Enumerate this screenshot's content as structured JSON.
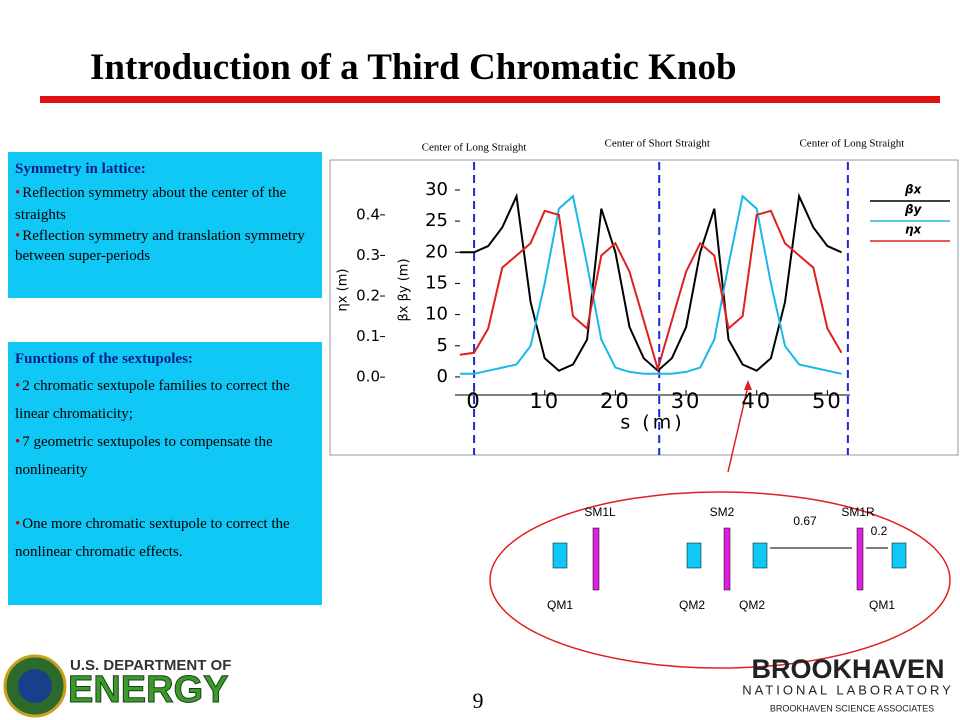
{
  "header": {
    "title": "Introduction of a Third Chromatic Knob"
  },
  "symmetry_box": {
    "heading": "Symmetry in lattice:",
    "items": [
      "Reflection symmetry about the center of the straights",
      "Reflection symmetry and translation symmetry between super-periods"
    ]
  },
  "functions_box": {
    "heading": "Functions of the sextupoles:",
    "items": [
      "2 chromatic sextupole families to correct the linear chromaticity;",
      "7 geometric sextupoles to compensate the nonlinearity",
      "One more chromatic sextupole to correct the nonlinear chromatic effects."
    ]
  },
  "chart_data": {
    "type": "line",
    "x_label": "s (m)",
    "y_label": "βx βy (m)",
    "y2_label": "ηx (m)",
    "xlim": [
      -2.7,
      53.2
    ],
    "ylim": [
      -2.9,
      31.6
    ],
    "y2lim": [
      -0.044,
      0.486
    ],
    "xticks": [
      0,
      10,
      20,
      30,
      40,
      50
    ],
    "yticks": [
      0,
      5,
      10,
      15,
      20,
      25,
      30
    ],
    "y2ticks": [
      {
        "value": 0,
        "label": "0.0"
      },
      0.1,
      0.2,
      0.3,
      0.4
    ],
    "markers": [
      {
        "x": 0,
        "label": "Center of Long Straight"
      },
      {
        "x": 26.2,
        "label": "Center of Short Straight"
      },
      {
        "x": 52.9,
        "label": "Center of Long Straight"
      }
    ],
    "x": [
      -2,
      0,
      2,
      4,
      6,
      8,
      10,
      12,
      14,
      16,
      18,
      20,
      22,
      24,
      26,
      28,
      30,
      32,
      34,
      36,
      38,
      40,
      42,
      44,
      46,
      48,
      50,
      52
    ],
    "series": [
      {
        "name": "βx",
        "color": "#000000",
        "values": [
          20,
          20,
          21,
          24,
          29,
          12,
          3,
          1,
          2,
          6,
          27,
          20,
          8,
          3,
          1,
          3,
          8,
          20,
          27,
          6,
          2,
          1,
          3,
          12,
          29,
          24,
          21,
          20
        ]
      },
      {
        "name": "βy",
        "color": "#1ab8e8",
        "values": [
          0.5,
          0.5,
          1,
          1.5,
          2,
          5,
          15,
          27,
          29,
          18,
          6,
          1.5,
          0.8,
          0.5,
          0.5,
          0.5,
          0.8,
          1.5,
          6,
          18,
          29,
          27,
          15,
          5,
          2,
          1.5,
          1,
          0.5
        ]
      },
      {
        "name": "ηx",
        "color": "#e02020",
        "axis": "y2",
        "values": [
          0.055,
          0.06,
          0.12,
          0.27,
          0.3,
          0.33,
          0.41,
          0.4,
          0.15,
          0.12,
          0.3,
          0.33,
          0.26,
          0.14,
          0.02,
          0.14,
          0.26,
          0.33,
          0.3,
          0.12,
          0.15,
          0.4,
          0.41,
          0.33,
          0.3,
          0.27,
          0.12,
          0.06
        ]
      }
    ]
  },
  "magnet_diagram": {
    "sextupoles": [
      "SM1L",
      "SM2",
      "SM1R"
    ],
    "quadrupoles": [
      "QM1",
      "QM2",
      "QM2",
      "QM1"
    ],
    "distances": [
      "0.67",
      "0.2"
    ]
  },
  "footer": {
    "page_number": "9",
    "doe_line1": "U.S. DEPARTMENT OF",
    "doe_line2": "ENERGY",
    "bnl_line1": "BROOKHAVEN",
    "bnl_line2": "NATIONAL LABORATORY",
    "bnl_line3": "BROOKHAVEN SCIENCE ASSOCIATES"
  }
}
